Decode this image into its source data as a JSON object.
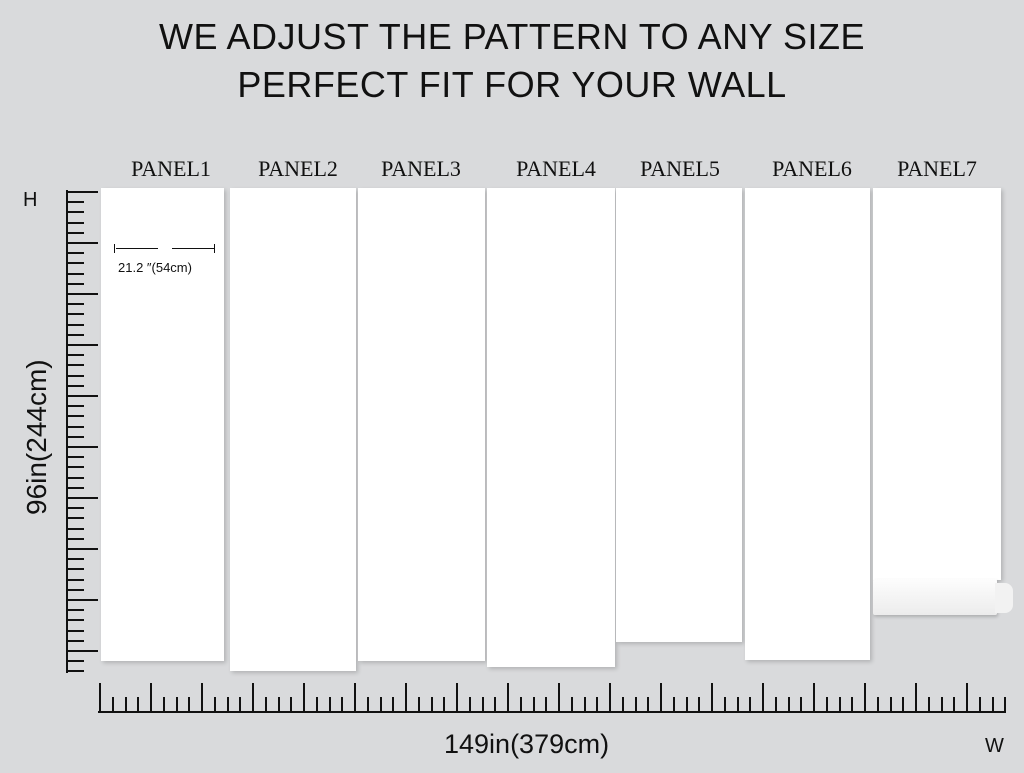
{
  "headline": {
    "line1": "WE ADJUST THE PATTERN TO ANY SIZE",
    "line2": "PERFECT FIT FOR YOUR WALL"
  },
  "panels": [
    {
      "label": "PANEL1"
    },
    {
      "label": "PANEL2"
    },
    {
      "label": "PANEL3"
    },
    {
      "label": "PANEL4"
    },
    {
      "label": "PANEL5"
    },
    {
      "label": "PANEL6"
    },
    {
      "label": "PANEL7"
    }
  ],
  "panel_width_label": "21.2  ″(54cm)",
  "height_axis": {
    "marker": "H",
    "label": "96in(244cm)"
  },
  "width_axis": {
    "marker": "W",
    "label": "149in(379cm)"
  },
  "colors": {
    "background": "#d9dadc",
    "panel": "#ffffff",
    "ink": "#111111"
  }
}
